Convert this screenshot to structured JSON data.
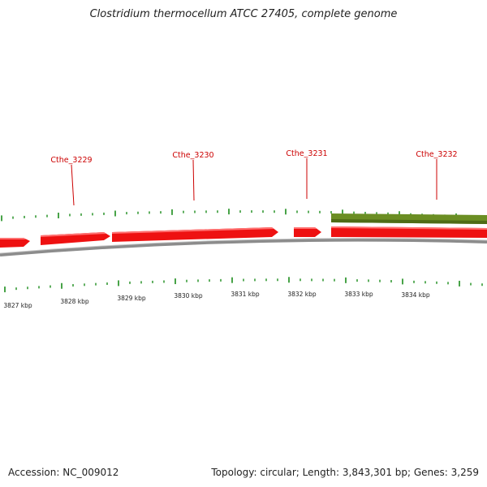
{
  "title": "Clostridium thermocellum ATCC 27405, complete genome",
  "footer": {
    "accession": "Accession: NC_009012",
    "summary": "Topology: circular; Length: 3,843,301 bp; Genes: 3,259"
  },
  "colors": {
    "cds": "#ee1111",
    "cds_highlight": "#ff7070",
    "rna": "#6b8e23",
    "tick": "#1a8c1a",
    "backbone": "#8c8c8c",
    "label": "#cc0000",
    "leader": "#cc0000"
  },
  "genes": [
    {
      "name": "Cthe_3229"
    },
    {
      "name": "Cthe_3230"
    },
    {
      "name": "Cthe_3231"
    },
    {
      "name": "Cthe_3232"
    }
  ],
  "ruler": [
    "3827 kbp",
    "3828 kbp",
    "3829 kbp",
    "3830 kbp",
    "3831 kbp",
    "3832 kbp",
    "3833 kbp",
    "3834 kbp"
  ]
}
